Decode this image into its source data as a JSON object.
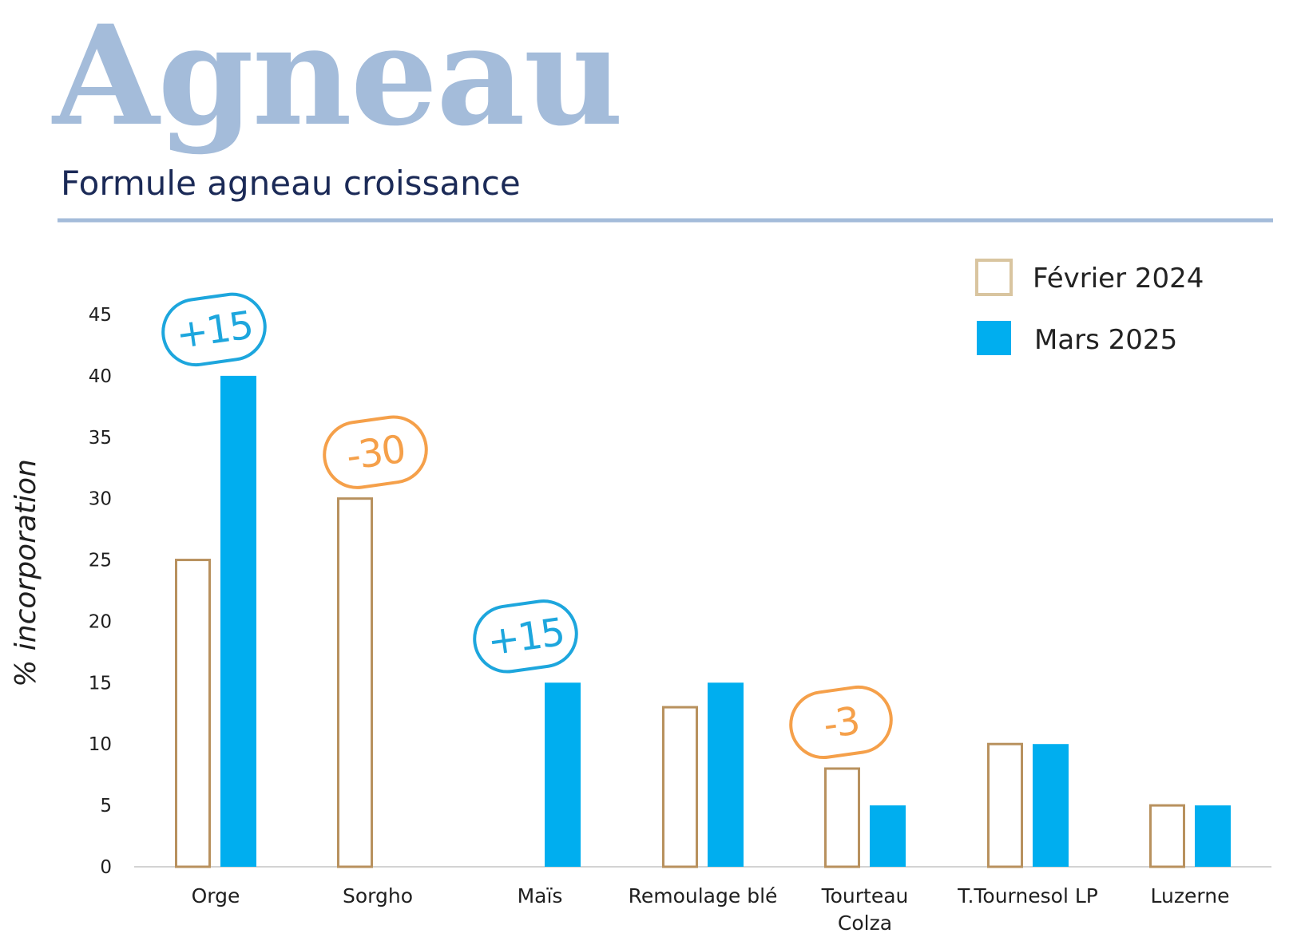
{
  "title": "Agneau",
  "subtitle": "Formule agneau croissance",
  "colors": {
    "title": "#a4bcda",
    "subtitle": "#1b2a57",
    "rule": "#a4bcda",
    "fevrier_outline": "#b8915e",
    "mars_fill": "#00aeef",
    "badge_positive": "#1da6dd",
    "badge_negative": "#f5a04a"
  },
  "chart_data": {
    "type": "bar",
    "ylabel": "% incorporation",
    "xlabel": "",
    "ylim": [
      0,
      45
    ],
    "yticks": [
      "0",
      "5",
      "10",
      "15",
      "20",
      "25",
      "30",
      "35",
      "40",
      "45"
    ],
    "categories": [
      [
        "Orge"
      ],
      [
        "Sorgho"
      ],
      [
        "Maïs"
      ],
      [
        "Remoulage blé"
      ],
      [
        "Tourteau",
        "Colza"
      ],
      [
        "T.Tournesol LP"
      ],
      [
        "Luzerne"
      ]
    ],
    "series": [
      {
        "name": "Février 2024",
        "style": "outline",
        "values": [
          25,
          30,
          0,
          13,
          8,
          10,
          5
        ]
      },
      {
        "name": "Mars 2025",
        "style": "fill",
        "values": [
          40,
          0,
          15,
          15,
          5,
          10,
          5
        ]
      }
    ],
    "legend": {
      "position": "top-right",
      "items": [
        "Février 2024",
        "Mars 2025"
      ]
    },
    "annotations": [
      {
        "text": "+15",
        "category_index": 0,
        "kind": "positive",
        "anchor_value": 40
      },
      {
        "text": "-30",
        "category_index": 1,
        "kind": "negative",
        "anchor_value": 30
      },
      {
        "text": "+15",
        "category_index": 2,
        "kind": "positive",
        "anchor_value": 15
      },
      {
        "text": "-3",
        "category_index": 4,
        "kind": "negative",
        "anchor_value": 8
      }
    ]
  }
}
